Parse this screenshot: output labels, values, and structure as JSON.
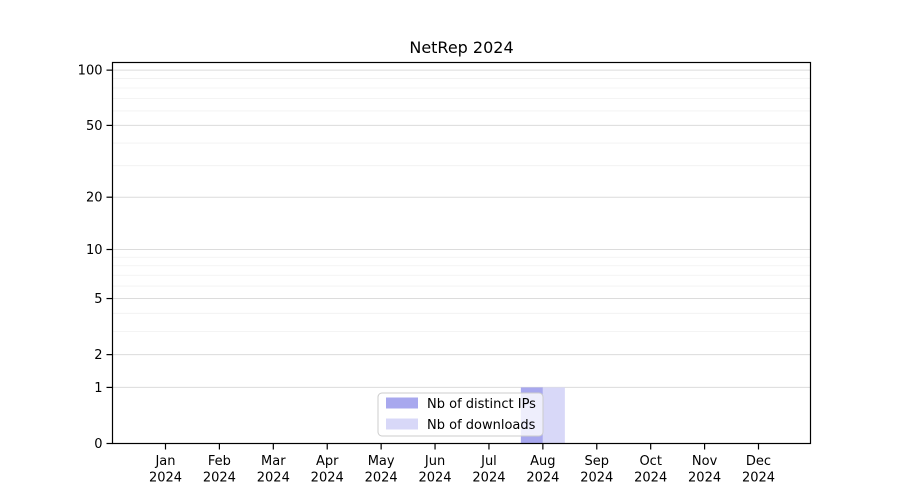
{
  "title": "NetRep 2024",
  "chart_data": {
    "type": "bar",
    "title": "NetRep 2024",
    "categories": [
      "Jan 2024",
      "Feb 2024",
      "Mar 2024",
      "Apr 2024",
      "May 2024",
      "Jun 2024",
      "Jul 2024",
      "Aug 2024",
      "Sep 2024",
      "Oct 2024",
      "Nov 2024",
      "Dec 2024"
    ],
    "series": [
      {
        "name": "Nb of distinct IPs",
        "color": "#a8a8ee",
        "values": [
          0,
          0,
          0,
          0,
          0,
          0,
          0,
          1,
          0,
          0,
          0,
          0
        ]
      },
      {
        "name": "Nb of downloads",
        "color": "#d8d8f8",
        "values": [
          0,
          0,
          0,
          0,
          0,
          0,
          0,
          1,
          0,
          0,
          0,
          0
        ]
      }
    ],
    "xlabel": "",
    "ylabel": "",
    "yscale": "log1p",
    "ylim": [
      0,
      110
    ],
    "yticks": [
      0,
      1,
      2,
      5,
      10,
      20,
      50,
      100
    ],
    "y_minor_gridlines": [
      3,
      4,
      6,
      7,
      8,
      9,
      30,
      40,
      60,
      70,
      80,
      90
    ],
    "grid": true,
    "legend": {
      "position": "lower center",
      "entries": [
        "Nb of distinct IPs",
        "Nb of downloads"
      ]
    }
  },
  "colors": {
    "background": "#ffffff",
    "spine": "#000000",
    "major_grid": "#dcdcdc",
    "minor_grid": "#f0f0f0",
    "legend_border": "#cccccc",
    "bar_distinct_ips": "#a8a8ee",
    "bar_downloads": "#d8d8f8"
  }
}
